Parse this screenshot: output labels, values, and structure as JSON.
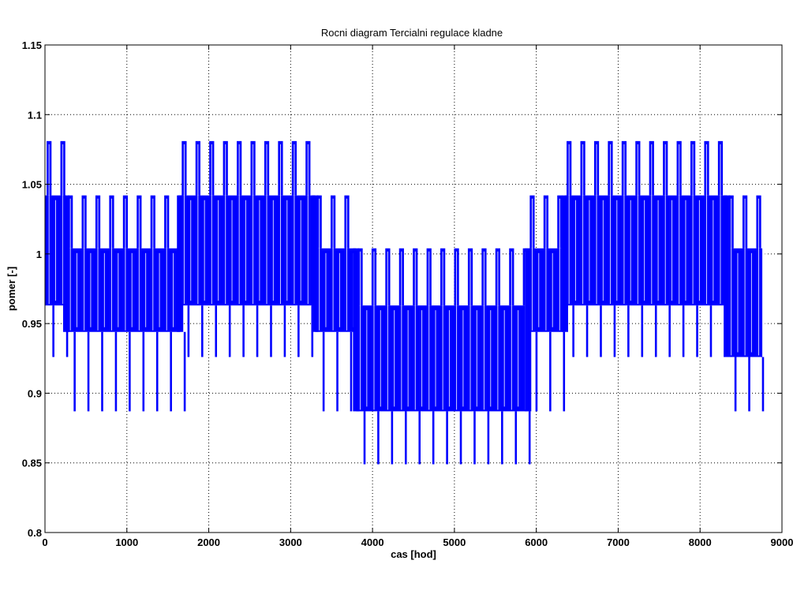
{
  "chart_data": {
    "type": "line",
    "title": "Rocni diagram Tercialni regulace kladne",
    "xlabel": "cas [hod]",
    "ylabel": "pomer [-]",
    "xlim": [
      0,
      9000
    ],
    "ylim": [
      0.8,
      1.15
    ],
    "xticks": [
      "0",
      "1000",
      "2000",
      "3000",
      "4000",
      "5000",
      "6000",
      "7000",
      "8000",
      "9000"
    ],
    "yticks": [
      "0.8",
      "0.85",
      "0.9",
      "0.95",
      "1",
      "1.05",
      "1.1",
      "1.15"
    ],
    "xtick_values": [
      0,
      1000,
      2000,
      3000,
      4000,
      5000,
      6000,
      7000,
      8000,
      9000
    ],
    "ytick_values": [
      0.8,
      0.85,
      0.9,
      0.95,
      1.0,
      1.05,
      1.1,
      1.15
    ],
    "grid": true,
    "series": [
      {
        "name": "pomer",
        "color": "#0000ff",
        "description": "dense hourly oscillation within seasonal bands",
        "segments": [
          {
            "x0": 0,
            "x1": 260,
            "lo": 0.926,
            "hi": 1.081,
            "base_lo": 0.963,
            "base_hi": 1.042
          },
          {
            "x0": 260,
            "x1": 1650,
            "lo": 0.887,
            "hi": 1.042,
            "base_lo": 0.944,
            "base_hi": 1.004
          },
          {
            "x0": 1650,
            "x1": 3300,
            "lo": 0.926,
            "hi": 1.081,
            "base_lo": 0.963,
            "base_hi": 1.042
          },
          {
            "x0": 3300,
            "x1": 3800,
            "lo": 0.887,
            "hi": 1.042,
            "base_lo": 0.944,
            "base_hi": 1.004
          },
          {
            "x0": 3800,
            "x1": 5900,
            "lo": 0.849,
            "hi": 1.004,
            "base_lo": 0.887,
            "base_hi": 0.963
          },
          {
            "x0": 5900,
            "x1": 6350,
            "lo": 0.887,
            "hi": 1.042,
            "base_lo": 0.944,
            "base_hi": 1.004
          },
          {
            "x0": 6350,
            "x1": 8330,
            "lo": 0.926,
            "hi": 1.081,
            "base_lo": 0.963,
            "base_hi": 1.042
          },
          {
            "x0": 8330,
            "x1": 8760,
            "lo": 0.887,
            "hi": 1.042,
            "base_lo": 0.926,
            "base_hi": 1.004
          }
        ]
      }
    ]
  }
}
